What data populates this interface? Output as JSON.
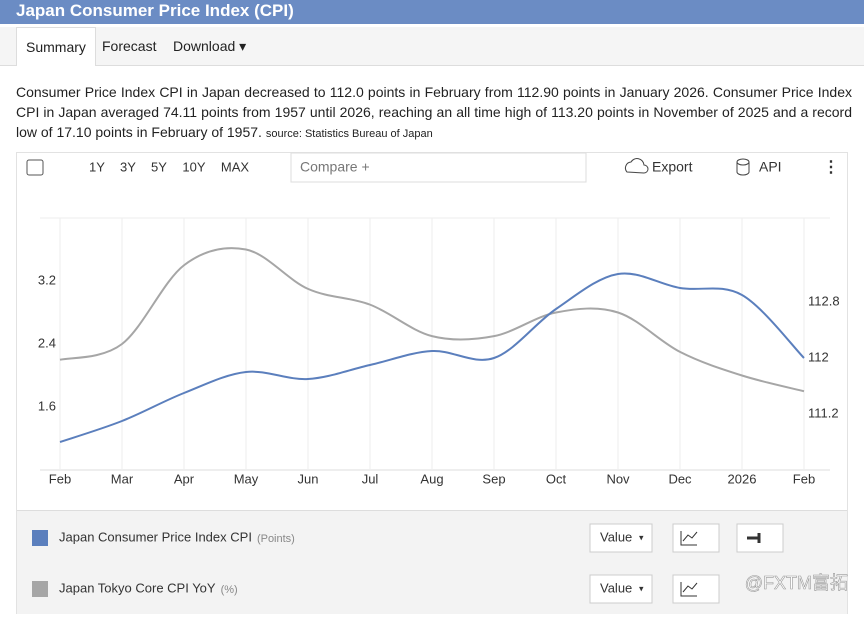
{
  "header": {
    "title": "Japan Consumer Price Index (CPI)"
  },
  "tabs": [
    "Summary",
    "Forecast",
    "Download"
  ],
  "description": {
    "text": "Consumer Price Index CPI in Japan decreased to 112.0 points in February from 112.90 points in January 2026. Consumer Price Index CPI in Japan averaged 74.11 points from 1957 until 2026, reaching an all time high of 113.20 points in November of 2025 and a record low of 17.10 points in February of 1957.",
    "source": "source: Statistics Bureau of Japan"
  },
  "toolbar": {
    "ranges": [
      "1Y",
      "3Y",
      "5Y",
      "10Y",
      "MAX"
    ],
    "compare": "Compare +",
    "export": "Export",
    "api": "API"
  },
  "chart_data": {
    "type": "line",
    "categories": [
      "Feb",
      "Mar",
      "Apr",
      "May",
      "Jun",
      "Jul",
      "Aug",
      "Sep",
      "Oct",
      "Nov",
      "Dec",
      "2026",
      "Feb"
    ],
    "series": [
      {
        "name": "Japan Consumer Price Index CPI",
        "color": "#5b7fbd",
        "axis": "y2",
        "values": [
          110.8,
          111.1,
          111.5,
          111.8,
          111.7,
          111.9,
          112.1,
          112.0,
          112.7,
          113.2,
          113.0,
          112.9,
          112.0
        ]
      },
      {
        "name": "Japan Tokyo Core CPI YoY",
        "color": "#a6a6a6",
        "values": [
          2.2,
          2.4,
          3.4,
          3.6,
          3.1,
          2.9,
          2.5,
          2.5,
          2.8,
          2.8,
          2.3,
          2.0,
          1.8
        ]
      }
    ],
    "ylim": [
      0.8,
      4.0
    ],
    "yticks": [
      1.6,
      2.4,
      3.2
    ],
    "y2lim": [
      110.4,
      114.0
    ],
    "y2ticks": [
      111.2,
      112,
      112.8
    ],
    "grid": true
  },
  "legend": {
    "units": [
      "(Points)",
      "(%)"
    ],
    "select": "Value"
  },
  "watermark": "@FXTM富拓"
}
